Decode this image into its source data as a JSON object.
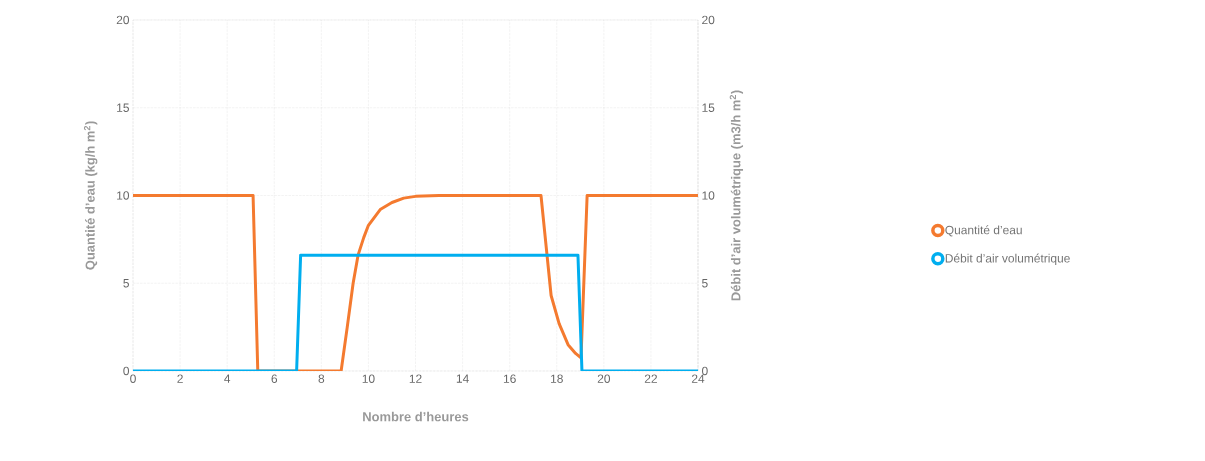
{
  "chart_data": {
    "type": "line",
    "xlabel": "Nombre d’heures",
    "ylabel": "Quantité d’eau (kg/h m$^{2}$)",
    "y2label": "Débit d’air volumétrique (m3/h m$^{2}$)",
    "series": [
      {
        "name": "Quantité d’eau",
        "color": "#f47a2f",
        "x": [
          0,
          5.1,
          5.3,
          8.84,
          9.1,
          9.35,
          9.56,
          9.8,
          10,
          10.5,
          11,
          11.5,
          12,
          13,
          17.33,
          17.76,
          18.1,
          18.48,
          18.8,
          19.03,
          19.29,
          24
        ],
        "values": [
          10,
          10,
          0,
          0,
          2.5,
          5,
          6.6,
          7.6,
          8.3,
          9.2,
          9.6,
          9.85,
          9.95,
          10,
          10,
          4.3,
          2.7,
          1.5,
          1,
          0.75,
          10,
          10
        ]
      },
      {
        "name": "Débit d’air volumétrique",
        "color": "#00aeef",
        "axis": "y2",
        "x": [
          0,
          6.95,
          7.12,
          18.9,
          19.07,
          24
        ],
        "values": [
          0,
          0,
          6.6,
          6.6,
          0,
          0
        ]
      }
    ],
    "xlim": [
      0,
      24
    ],
    "xticks": [
      0,
      2,
      4,
      6,
      8,
      10,
      12,
      14,
      16,
      18,
      20,
      22,
      24
    ],
    "ylim": [
      0,
      20
    ],
    "yticks": [
      0,
      5,
      10,
      15,
      20
    ],
    "y2lim": [
      0,
      20
    ],
    "y2ticks": [
      0,
      5,
      10,
      15,
      20
    ],
    "grid": true,
    "legend": "right"
  }
}
